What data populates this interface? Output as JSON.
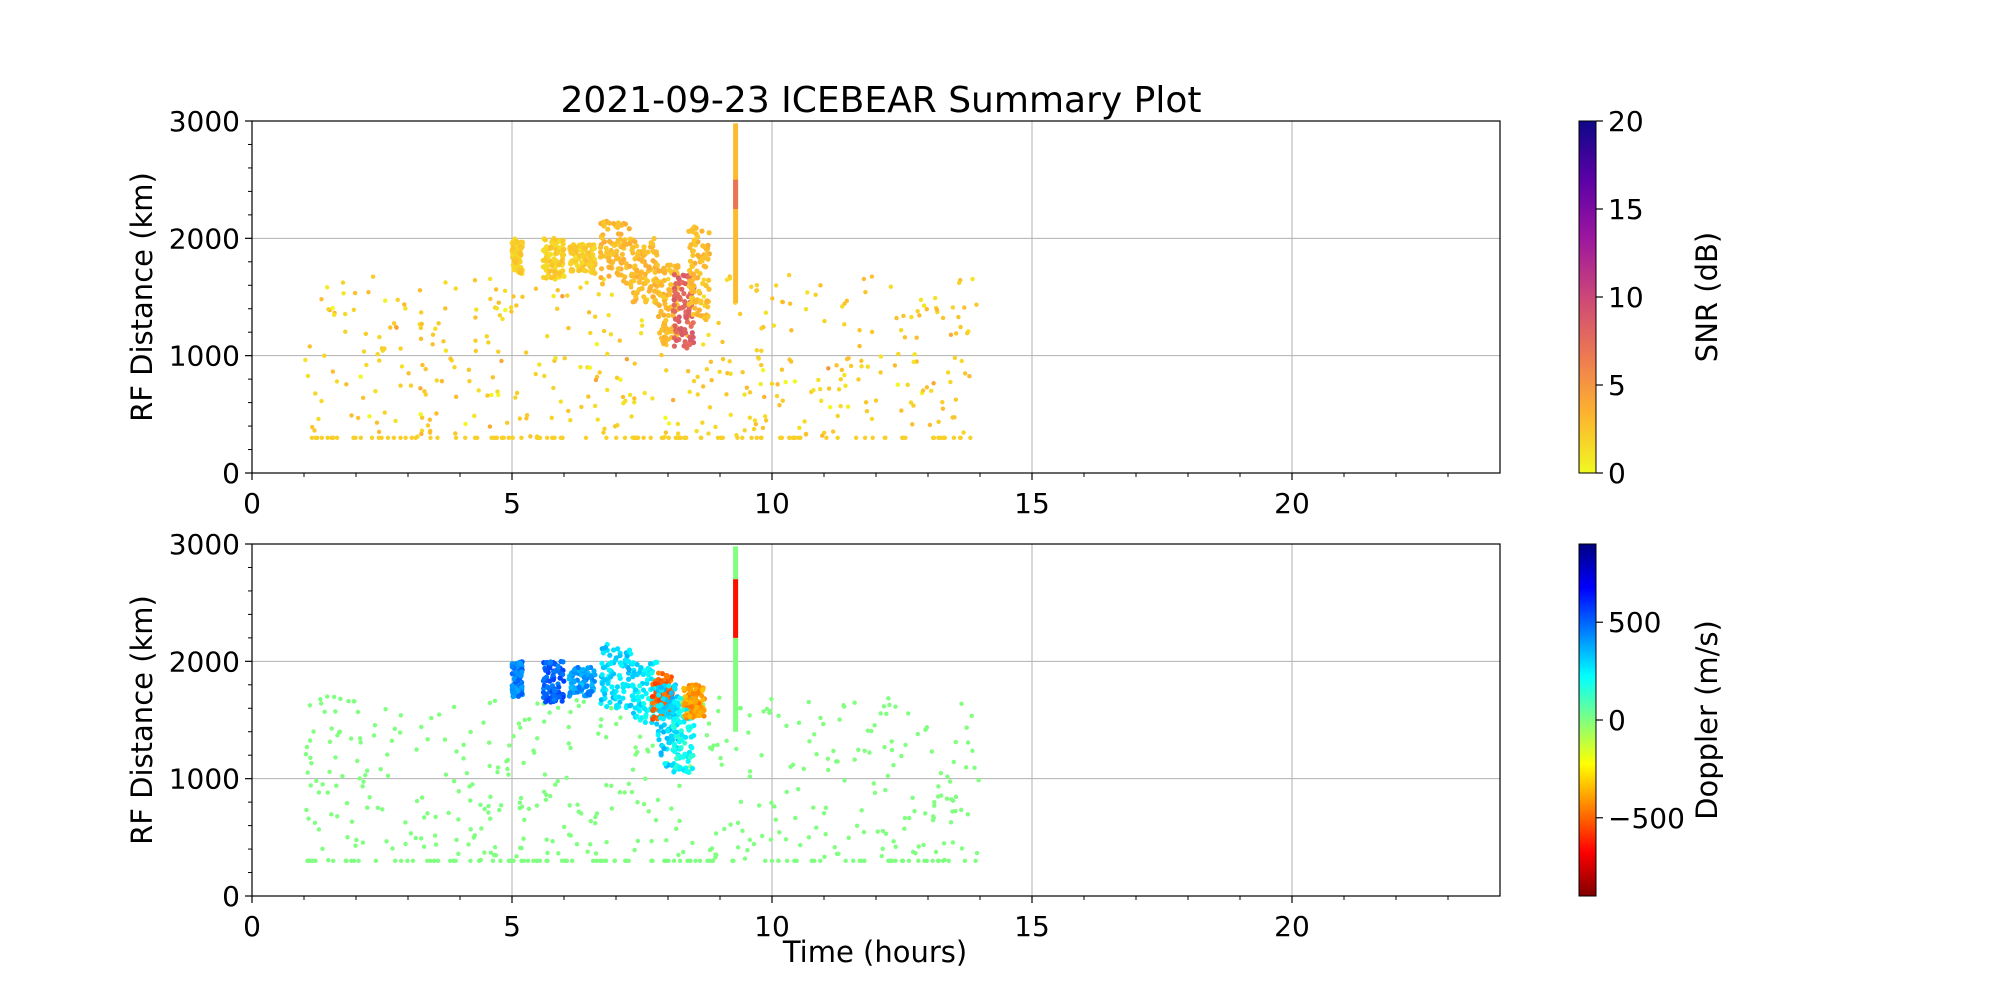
{
  "figure": {
    "title": "2021-09-23 ICEBEAR Summary Plot"
  },
  "chart_data": [
    {
      "type": "scatter",
      "panel": "top",
      "xlabel": "",
      "ylabel": "RF Distance (km)",
      "xlim": [
        0,
        24
      ],
      "ylim": [
        0,
        3000
      ],
      "xticks": [
        0,
        5,
        10,
        15,
        20
      ],
      "yticks": [
        0,
        1000,
        2000,
        3000
      ],
      "grid": true,
      "colorbar": {
        "label": "SNR (dB)",
        "range": [
          0,
          20
        ],
        "ticks": [
          0,
          5,
          10,
          15,
          20
        ],
        "colormap": "plasma_r",
        "colors": [
          "#f0f921",
          "#fdb42f",
          "#ed7953",
          "#cc4778",
          "#9c179e",
          "#5c01a6",
          "#0d0887"
        ]
      },
      "clusters": [
        {
          "x": [
            5.0,
            5.2
          ],
          "y": [
            1700,
            2000
          ],
          "value": 2
        },
        {
          "x": [
            5.6,
            6.0
          ],
          "y": [
            1650,
            2000
          ],
          "value": 2
        },
        {
          "x": [
            6.1,
            6.6
          ],
          "y": [
            1700,
            1950
          ],
          "value": 2
        },
        {
          "x": [
            6.7,
            7.3
          ],
          "y": [
            1600,
            2150
          ],
          "value": 3
        },
        {
          "x": [
            7.3,
            7.8
          ],
          "y": [
            1450,
            2000
          ],
          "value": 3
        },
        {
          "x": [
            7.8,
            8.2
          ],
          "y": [
            1100,
            1800
          ],
          "value": 3
        },
        {
          "x": [
            8.1,
            8.5
          ],
          "y": [
            1050,
            1700
          ],
          "value": 8
        },
        {
          "x": [
            8.4,
            8.8
          ],
          "y": [
            1300,
            2100
          ],
          "value": 3
        }
      ],
      "spike": {
        "x": 9.3,
        "y": [
          1450,
          2980
        ],
        "value": 3,
        "hot_value": 7,
        "hot_y": [
          2250,
          2500
        ]
      },
      "scatter": {
        "x": [
          1.0,
          14.0
        ],
        "y": [
          300,
          1700
        ],
        "value_typical": 2,
        "baseline_y": 300
      }
    },
    {
      "type": "scatter",
      "panel": "bottom",
      "xlabel": "Time (hours)",
      "ylabel": "RF Distance (km)",
      "xlim": [
        0,
        24
      ],
      "ylim": [
        0,
        3000
      ],
      "xticks": [
        0,
        5,
        10,
        15,
        20
      ],
      "yticks": [
        0,
        1000,
        2000,
        3000
      ],
      "grid": true,
      "colorbar": {
        "label": "Doppler (m/s)",
        "range": [
          -900,
          900
        ],
        "ticks": [
          -500,
          0,
          500
        ],
        "tick_labels": [
          "−500",
          "0",
          "500"
        ],
        "colormap": "jet_r",
        "colors": [
          "#800000",
          "#ff0000",
          "#ff8000",
          "#ffff00",
          "#80ff80",
          "#00ffff",
          "#0080ff",
          "#0000ff",
          "#000080"
        ]
      },
      "clusters": [
        {
          "x": [
            5.0,
            5.2
          ],
          "y": [
            1700,
            2000
          ],
          "value": 450
        },
        {
          "x": [
            5.6,
            6.0
          ],
          "y": [
            1650,
            2000
          ],
          "value": 500
        },
        {
          "x": [
            6.1,
            6.6
          ],
          "y": [
            1700,
            1950
          ],
          "value": 400
        },
        {
          "x": [
            6.7,
            7.3
          ],
          "y": [
            1600,
            2150
          ],
          "value": 300
        },
        {
          "x": [
            7.3,
            7.8
          ],
          "y": [
            1450,
            2000
          ],
          "value": 250
        },
        {
          "x": [
            7.7,
            8.1
          ],
          "y": [
            1500,
            1900
          ],
          "value": -500
        },
        {
          "x": [
            7.8,
            8.2
          ],
          "y": [
            1100,
            1800
          ],
          "value": 300
        },
        {
          "x": [
            8.1,
            8.5
          ],
          "y": [
            1050,
            1700
          ],
          "value": 200
        },
        {
          "x": [
            8.3,
            8.7
          ],
          "y": [
            1500,
            1800
          ],
          "value": -400
        }
      ],
      "spike": {
        "x": 9.3,
        "y": [
          1400,
          2980
        ],
        "value": 0,
        "hot_value": -650,
        "hot_y": [
          2200,
          2700
        ]
      },
      "scatter": {
        "x": [
          1.0,
          14.0
        ],
        "y": [
          300,
          1700
        ],
        "value_typical": 0,
        "baseline_y": 300
      }
    }
  ]
}
